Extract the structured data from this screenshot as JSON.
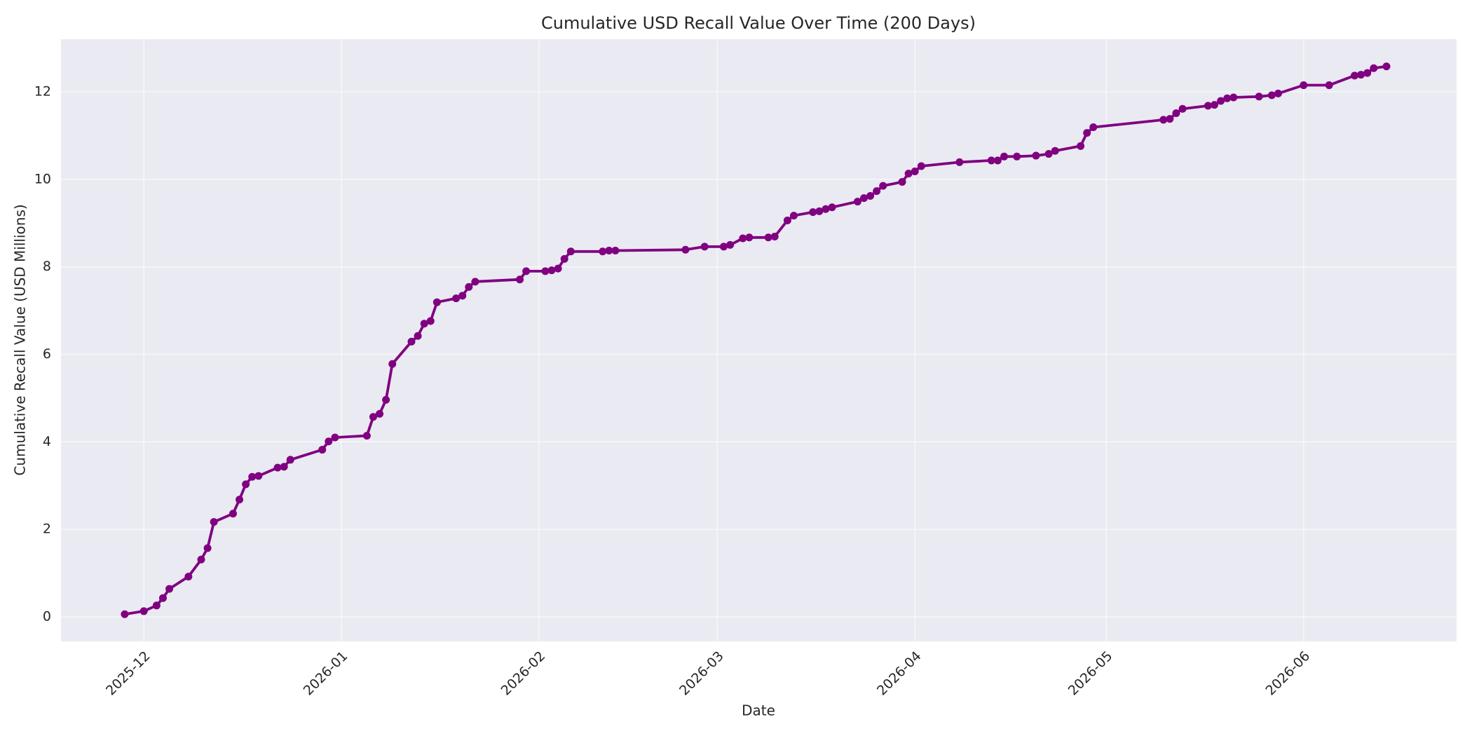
{
  "chart_data": {
    "type": "line",
    "title": "Cumulative USD Recall Value Over Time (200 Days)",
    "xlabel": "Date",
    "ylabel": "Cumulative Recall Value (USD Millions)",
    "color": "#800080",
    "grid": true,
    "xlim": [
      "2025-11-18",
      "2026-06-25"
    ],
    "xticks": [
      {
        "value": "2025-12-01",
        "label": "2025-12"
      },
      {
        "value": "2026-01-01",
        "label": "2026-01"
      },
      {
        "value": "2026-02-01",
        "label": "2026-02"
      },
      {
        "value": "2026-03-01",
        "label": "2026-03"
      },
      {
        "value": "2026-04-01",
        "label": "2026-04"
      },
      {
        "value": "2026-05-01",
        "label": "2026-05"
      },
      {
        "value": "2026-06-01",
        "label": "2026-06"
      }
    ],
    "ylim": [
      -0.56,
      13.2
    ],
    "yticks": [
      0,
      2,
      4,
      6,
      8,
      10,
      12
    ],
    "x": [
      "2025-11-28",
      "2025-12-01",
      "2025-12-03",
      "2025-12-04",
      "2025-12-05",
      "2025-12-08",
      "2025-12-10",
      "2025-12-11",
      "2025-12-12",
      "2025-12-15",
      "2025-12-16",
      "2025-12-17",
      "2025-12-18",
      "2025-12-19",
      "2025-12-22",
      "2025-12-23",
      "2025-12-24",
      "2025-12-29",
      "2025-12-30",
      "2025-12-31",
      "2026-01-05",
      "2026-01-06",
      "2026-01-07",
      "2026-01-08",
      "2026-01-09",
      "2026-01-12",
      "2026-01-13",
      "2026-01-14",
      "2026-01-15",
      "2026-01-16",
      "2026-01-19",
      "2026-01-20",
      "2026-01-21",
      "2026-01-22",
      "2026-01-29",
      "2026-01-30",
      "2026-02-02",
      "2026-02-03",
      "2026-02-04",
      "2026-02-05",
      "2026-02-06",
      "2026-02-11",
      "2026-02-12",
      "2026-02-13",
      "2026-02-24",
      "2026-02-27",
      "2026-03-02",
      "2026-03-03",
      "2026-03-05",
      "2026-03-06",
      "2026-03-09",
      "2026-03-10",
      "2026-03-12",
      "2026-03-13",
      "2026-03-16",
      "2026-03-17",
      "2026-03-18",
      "2026-03-19",
      "2026-03-23",
      "2026-03-24",
      "2026-03-25",
      "2026-03-26",
      "2026-03-27",
      "2026-03-30",
      "2026-03-31",
      "2026-04-01",
      "2026-04-02",
      "2026-04-08",
      "2026-04-13",
      "2026-04-14",
      "2026-04-15",
      "2026-04-17",
      "2026-04-20",
      "2026-04-22",
      "2026-04-23",
      "2026-04-27",
      "2026-04-28",
      "2026-04-29",
      "2026-05-10",
      "2026-05-11",
      "2026-05-12",
      "2026-05-13",
      "2026-05-17",
      "2026-05-18",
      "2026-05-19",
      "2026-05-20",
      "2026-05-21",
      "2026-05-25",
      "2026-05-27",
      "2026-05-28",
      "2026-06-01",
      "2026-06-05",
      "2026-06-09",
      "2026-06-10",
      "2026-06-11",
      "2026-06-12",
      "2026-06-14"
    ],
    "values": [
      0.06,
      0.13,
      0.26,
      0.43,
      0.64,
      0.92,
      1.31,
      1.57,
      2.17,
      2.36,
      2.68,
      3.03,
      3.2,
      3.22,
      3.41,
      3.43,
      3.59,
      3.82,
      4.01,
      4.1,
      4.14,
      4.57,
      4.64,
      4.96,
      5.78,
      6.29,
      6.42,
      6.7,
      6.76,
      7.19,
      7.28,
      7.34,
      7.54,
      7.66,
      7.71,
      7.9,
      7.9,
      7.92,
      7.96,
      8.18,
      8.35,
      8.35,
      8.37,
      8.37,
      8.39,
      8.46,
      8.46,
      8.5,
      8.65,
      8.67,
      8.67,
      8.69,
      9.06,
      9.17,
      9.25,
      9.27,
      9.32,
      9.36,
      9.49,
      9.57,
      9.62,
      9.73,
      9.85,
      9.94,
      10.13,
      10.18,
      10.3,
      10.39,
      10.43,
      10.43,
      10.52,
      10.52,
      10.54,
      10.58,
      10.65,
      10.76,
      11.06,
      11.19,
      11.36,
      11.38,
      11.51,
      11.61,
      11.68,
      11.7,
      11.79,
      11.85,
      11.87,
      11.89,
      11.92,
      11.96,
      12.15,
      12.15,
      12.37,
      12.39,
      12.43,
      12.54,
      12.58
    ]
  }
}
